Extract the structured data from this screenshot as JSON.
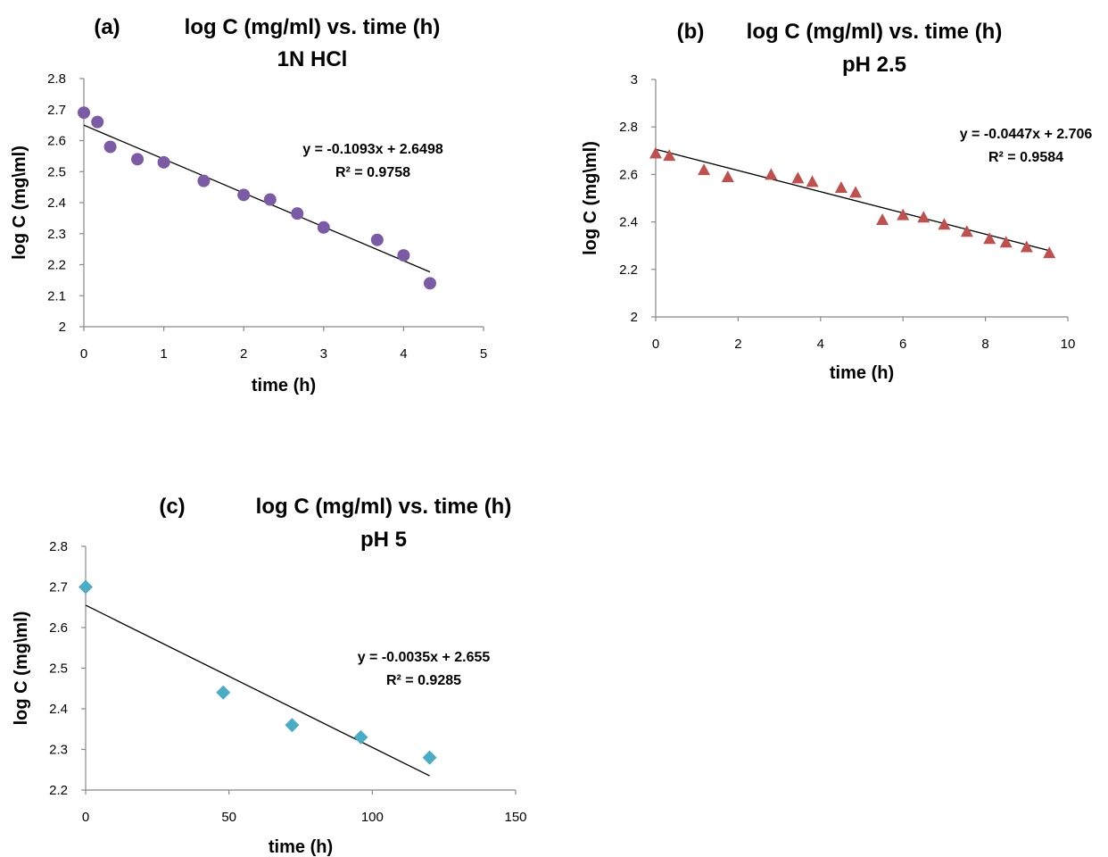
{
  "chart_data": [
    {
      "type": "scatter",
      "panel_label": "(a)",
      "title": "log C (mg/ml) vs. time (h)",
      "subtitle": "1N HCl",
      "xlabel": "time (h)",
      "ylabel": "log C (mg\\ml)",
      "xlim": [
        0,
        5
      ],
      "ylim": [
        2,
        2.8
      ],
      "xticks": [
        "0",
        "1",
        "2",
        "3",
        "4",
        "5"
      ],
      "yticks": [
        "2",
        "2.1",
        "2.2",
        "2.3",
        "2.4",
        "2.5",
        "2.6",
        "2.7",
        "2.8"
      ],
      "grid": false,
      "marker": "circle",
      "color": "#7b5ba6",
      "points": [
        {
          "x": 0,
          "y": 2.69
        },
        {
          "x": 0.17,
          "y": 2.66
        },
        {
          "x": 0.33,
          "y": 2.58
        },
        {
          "x": 0.67,
          "y": 2.54
        },
        {
          "x": 1,
          "y": 2.53
        },
        {
          "x": 1.5,
          "y": 2.47
        },
        {
          "x": 2,
          "y": 2.425
        },
        {
          "x": 2.33,
          "y": 2.41
        },
        {
          "x": 2.67,
          "y": 2.365
        },
        {
          "x": 3,
          "y": 2.32
        },
        {
          "x": 3.67,
          "y": 2.28
        },
        {
          "x": 4,
          "y": 2.23
        },
        {
          "x": 4.33,
          "y": 2.14
        }
      ],
      "trendline": {
        "slope": -0.1093,
        "intercept": 2.6498,
        "x_range": [
          0,
          4.33
        ]
      },
      "equation": "y = -0.1093x + 2.6498",
      "r2": "R² = 0.9758"
    },
    {
      "type": "scatter",
      "panel_label": "(b)",
      "title": "log C (mg/ml) vs. time (h)",
      "subtitle": "pH 2.5",
      "xlabel": "time (h)",
      "ylabel": "log C (mg\\ml)",
      "xlim": [
        0,
        10
      ],
      "ylim": [
        2,
        3
      ],
      "xticks": [
        "0",
        "2",
        "4",
        "6",
        "8",
        "10"
      ],
      "yticks": [
        "2",
        "2.2",
        "2.4",
        "2.6",
        "2.8",
        "3"
      ],
      "grid": false,
      "marker": "triangle",
      "color": "#c0504d",
      "points": [
        {
          "x": 0,
          "y": 2.69
        },
        {
          "x": 0.33,
          "y": 2.68
        },
        {
          "x": 1.17,
          "y": 2.62
        },
        {
          "x": 1.75,
          "y": 2.59
        },
        {
          "x": 2.8,
          "y": 2.6
        },
        {
          "x": 3.45,
          "y": 2.585
        },
        {
          "x": 3.8,
          "y": 2.57
        },
        {
          "x": 4.5,
          "y": 2.545
        },
        {
          "x": 4.85,
          "y": 2.525
        },
        {
          "x": 5.5,
          "y": 2.41
        },
        {
          "x": 6,
          "y": 2.43
        },
        {
          "x": 6.5,
          "y": 2.42
        },
        {
          "x": 7,
          "y": 2.39
        },
        {
          "x": 7.55,
          "y": 2.36
        },
        {
          "x": 8.1,
          "y": 2.33
        },
        {
          "x": 8.5,
          "y": 2.315
        },
        {
          "x": 9,
          "y": 2.295
        },
        {
          "x": 9.55,
          "y": 2.27
        }
      ],
      "trendline": {
        "slope": -0.0447,
        "intercept": 2.706,
        "x_range": [
          0,
          9.55
        ]
      },
      "equation": "y = -0.0447x + 2.706",
      "r2": "R² = 0.9584"
    },
    {
      "type": "scatter",
      "panel_label": "(c)",
      "title": "log C (mg/ml) vs. time (h)",
      "subtitle": "pH 5",
      "xlabel": "time (h)",
      "ylabel": "log C (mg\\ml)",
      "xlim": [
        0,
        150
      ],
      "ylim": [
        2.2,
        2.8
      ],
      "xticks": [
        "0",
        "50",
        "100",
        "150"
      ],
      "yticks": [
        "2.2",
        "2.3",
        "2.4",
        "2.5",
        "2.6",
        "2.7",
        "2.8"
      ],
      "grid": false,
      "marker": "diamond",
      "color": "#4bacc6",
      "points": [
        {
          "x": 0,
          "y": 2.7
        },
        {
          "x": 48,
          "y": 2.44
        },
        {
          "x": 72,
          "y": 2.36
        },
        {
          "x": 96,
          "y": 2.33
        },
        {
          "x": 120,
          "y": 2.28
        }
      ],
      "trendline": {
        "slope": -0.0035,
        "intercept": 2.655,
        "x_range": [
          0,
          120
        ]
      },
      "equation": "y = -0.0035x + 2.655",
      "r2": "R² = 0.9285"
    }
  ]
}
